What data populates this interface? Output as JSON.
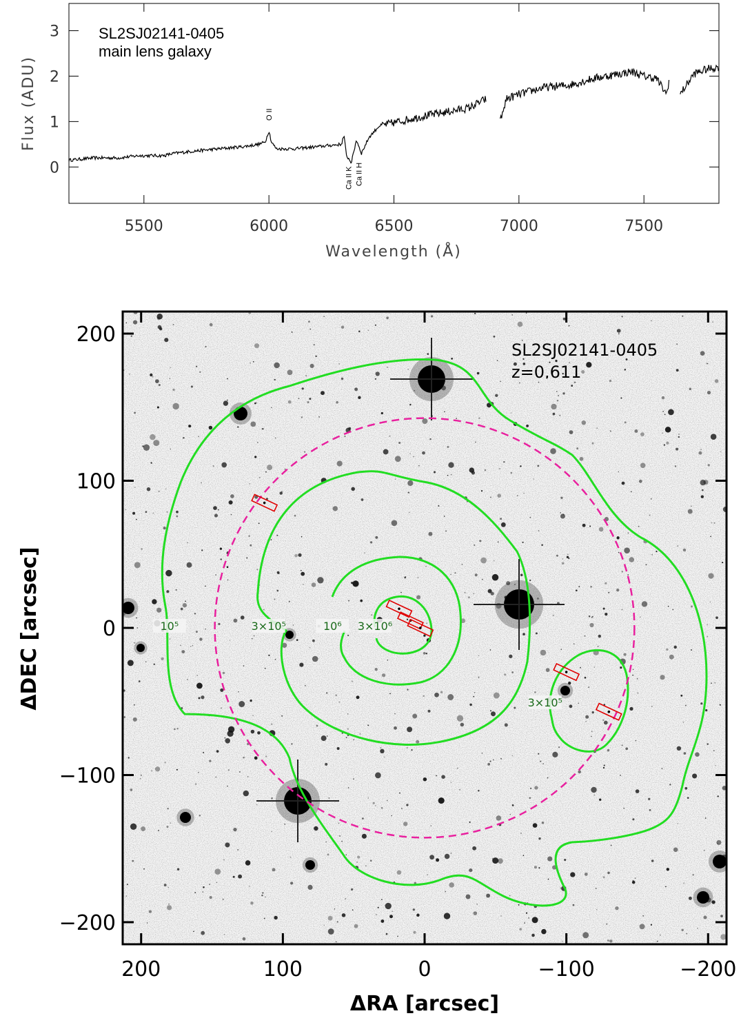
{
  "chart_data": [
    {
      "type": "line",
      "annotation": [
        "SL2SJ02141-0405",
        "main lens galaxy"
      ],
      "xlabel": "Wavelength (Å)",
      "ylabel": "Flux (ADU)",
      "xlim": [
        5200,
        7800
      ],
      "ylim": [
        -0.8,
        3.6
      ],
      "xticks": [
        5500,
        6000,
        6500,
        7000,
        7500
      ],
      "yticks": [
        0,
        1,
        2,
        3
      ],
      "line_ids": [
        {
          "label": "O II",
          "x": 6000
        },
        {
          "label": "Ca II K",
          "x": 6335
        },
        {
          "label": "Ca II H",
          "x": 6360
        }
      ],
      "gaps": [
        [
          6870,
          6925
        ],
        [
          7600,
          7645
        ]
      ],
      "series": [
        {
          "x": [
            5200,
            5300,
            5400,
            5480,
            5580,
            5620,
            5700,
            5800,
            5900,
            5960,
            5985,
            6000,
            6010,
            6030,
            6100,
            6200,
            6290,
            6300,
            6310,
            6330,
            6350,
            6370,
            6400,
            6440,
            6480,
            6520,
            6600,
            6700,
            6800,
            6870,
            6925,
            6950,
            7000,
            7100,
            7200,
            7300,
            7400,
            7450,
            7500,
            7550,
            7590,
            7600,
            7645,
            7700,
            7750,
            7800
          ],
          "y": [
            0.15,
            0.2,
            0.2,
            0.25,
            0.25,
            0.3,
            0.35,
            0.4,
            0.45,
            0.5,
            0.55,
            0.8,
            0.55,
            0.4,
            0.4,
            0.45,
            0.5,
            0.7,
            0.25,
            0.1,
            0.6,
            0.3,
            0.65,
            0.9,
            0.95,
            1.0,
            1.1,
            1.2,
            1.3,
            1.5,
            1.0,
            1.5,
            1.6,
            1.75,
            1.8,
            1.95,
            2.05,
            2.1,
            2.0,
            1.95,
            1.6,
            1.9,
            1.6,
            2.05,
            2.15,
            2.2
          ]
        }
      ]
    },
    {
      "type": "scatter",
      "annotation": [
        "SL2SJ02141-0405",
        "z=0.611"
      ],
      "xlabel": "ΔRA [arcsec]",
      "ylabel": "ΔDEC [arcsec]",
      "xlim": [
        213,
        -213
      ],
      "ylim": [
        -215,
        215
      ],
      "xticks": [
        200,
        100,
        0,
        -100,
        -200
      ],
      "yticks": [
        200,
        100,
        0,
        -100,
        -200
      ],
      "contour_labels": [
        {
          "text": "10⁵",
          "x": 180,
          "y": 0
        },
        {
          "text": "3×10⁵",
          "x": 110,
          "y": 0
        },
        {
          "text": "10⁶",
          "x": 65,
          "y": 0
        },
        {
          "text": "3×10⁶",
          "x": 35,
          "y": 0
        },
        {
          "text": "3×10⁵",
          "x": -85,
          "y": -52
        }
      ],
      "dashed_circle": {
        "center": [
          0,
          0
        ],
        "radius": 148
      },
      "slits": [
        {
          "x": 113,
          "y": 85
        },
        {
          "x": 18,
          "y": 13
        },
        {
          "x": 10,
          "y": 5
        },
        {
          "x": 3,
          "y": 0
        },
        {
          "x": -100,
          "y": -30
        },
        {
          "x": -130,
          "y": -57
        }
      ],
      "colors": {
        "contours": "#22dd22",
        "circle": "#e8209e",
        "slits": "#e00000",
        "contour_text": "#1a6a1a"
      }
    }
  ]
}
